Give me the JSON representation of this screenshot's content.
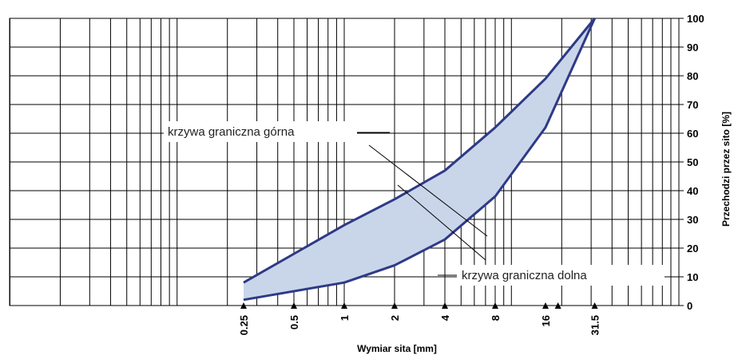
{
  "chart_data": {
    "type": "area",
    "xscale": "log",
    "xlabel": "Wymiar sita [mm]",
    "ylabel": "Przechodzi przez sito [%]",
    "ylim": [
      0,
      100
    ],
    "yticks": [
      0,
      10,
      20,
      30,
      40,
      50,
      60,
      70,
      80,
      90,
      100
    ],
    "yaxis_side": "right",
    "grid": true,
    "xticks": [
      {
        "label": "0.25",
        "value": 0.25
      },
      {
        "label": "0.5",
        "value": 0.5
      },
      {
        "label": "1",
        "value": 1
      },
      {
        "label": "2",
        "value": 2
      },
      {
        "label": "4",
        "value": 4
      },
      {
        "label": "8",
        "value": 8
      },
      {
        "label": "16",
        "value": 16
      },
      {
        "label": "31.5",
        "value": 31.5
      }
    ],
    "series": [
      {
        "name": "krzywa graniczna górna",
        "x": [
          0.25,
          1,
          2,
          4,
          8,
          16,
          31.5
        ],
        "values": [
          8,
          28,
          37,
          47,
          62,
          79,
          100
        ]
      },
      {
        "name": "krzywa graniczna dolna",
        "x": [
          0.25,
          1,
          2,
          4,
          8,
          16,
          31.5
        ],
        "values": [
          2,
          8,
          14,
          23,
          38,
          62,
          100
        ]
      }
    ],
    "annotations": [
      {
        "text": "krzywa graniczna górna"
      },
      {
        "text": "krzywa graniczna dolna"
      }
    ],
    "band_color": "#c9d6ea",
    "line_color": "#2e3a86"
  }
}
